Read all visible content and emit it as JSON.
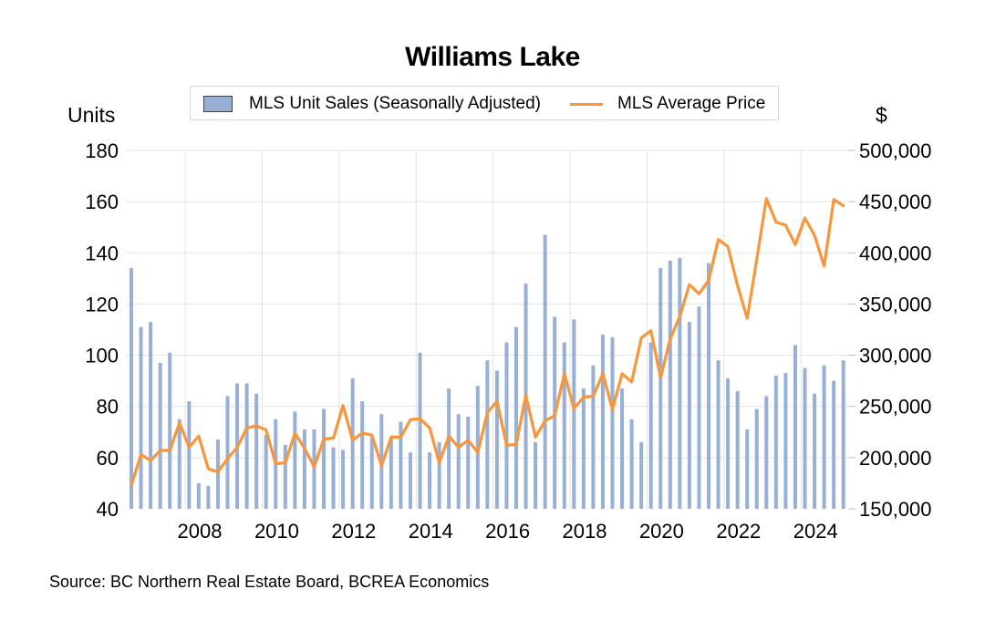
{
  "chart_data": {
    "type": "bar+line",
    "title": "Williams Lake",
    "source": "Source:  BC Northern Real Estate Board, BCREA Economics",
    "left_axis": {
      "title": "Units",
      "ylim": [
        40,
        180
      ],
      "ticks": [
        40,
        60,
        80,
        100,
        120,
        140,
        160,
        180
      ],
      "tick_labels": [
        "40",
        "60",
        "80",
        "100",
        "120",
        "140",
        "160",
        "180"
      ]
    },
    "right_axis": {
      "title": "$",
      "ylim": [
        150000,
        500000
      ],
      "ticks": [
        150000,
        200000,
        250000,
        300000,
        350000,
        400000,
        450000,
        500000
      ],
      "tick_labels": [
        "150,000",
        "200,000",
        "250,000",
        "300,000",
        "350,000",
        "400,000",
        "450,000",
        "500,000"
      ]
    },
    "x_axis": {
      "tick_labels": [
        "2008",
        "2010",
        "2012",
        "2014",
        "2016",
        "2018",
        "2020",
        "2022",
        "2024"
      ],
      "first_period": "2006 Q3",
      "period": "quarter"
    },
    "grid": true,
    "legend": {
      "placement": "top-center",
      "entries": [
        "MLS Unit Sales (Seasonally Adjusted)",
        "MLS Average Price"
      ]
    },
    "colors": {
      "bars": "#98afd6",
      "line": "#f7963b",
      "grid": "#e3e3e3"
    },
    "series": [
      {
        "name": "MLS Unit Sales (Seasonally Adjusted)",
        "type": "bar",
        "axis": "left",
        "values": [
          134,
          111,
          113,
          97,
          101,
          75,
          82,
          50,
          49,
          67,
          84,
          89,
          89,
          85,
          69,
          75,
          65,
          78,
          71,
          71,
          79,
          64,
          63,
          91,
          82,
          68,
          77,
          68,
          74,
          62,
          101,
          62,
          66,
          87,
          77,
          76,
          88,
          98,
          94,
          105,
          111,
          128,
          66,
          147,
          115,
          105,
          114,
          87,
          96,
          108,
          107,
          87,
          75,
          66,
          105,
          134,
          137,
          138,
          113,
          119,
          136,
          98,
          91,
          86,
          71,
          79,
          84,
          92,
          93,
          104,
          95,
          85,
          96,
          90,
          98
        ]
      },
      {
        "name": "MLS Average Price",
        "type": "line",
        "axis": "right",
        "values": [
          173000,
          203000,
          197000,
          207000,
          207000,
          234000,
          210000,
          221000,
          189000,
          186000,
          199000,
          210000,
          229000,
          231000,
          227000,
          194000,
          195000,
          224000,
          209000,
          191000,
          218000,
          219000,
          251000,
          217000,
          224000,
          222000,
          192000,
          220000,
          220000,
          237000,
          238000,
          229000,
          195000,
          221000,
          210000,
          217000,
          205000,
          244000,
          255000,
          212000,
          213000,
          261000,
          220000,
          236000,
          241000,
          282000,
          248000,
          259000,
          260000,
          282000,
          247000,
          282000,
          274000,
          317000,
          324000,
          278000,
          316000,
          338000,
          369000,
          360000,
          373000,
          413000,
          406000,
          368000,
          336000,
          394000,
          453000,
          430000,
          427000,
          408000,
          434000,
          417000,
          387000,
          452000,
          446000
        ]
      }
    ]
  }
}
